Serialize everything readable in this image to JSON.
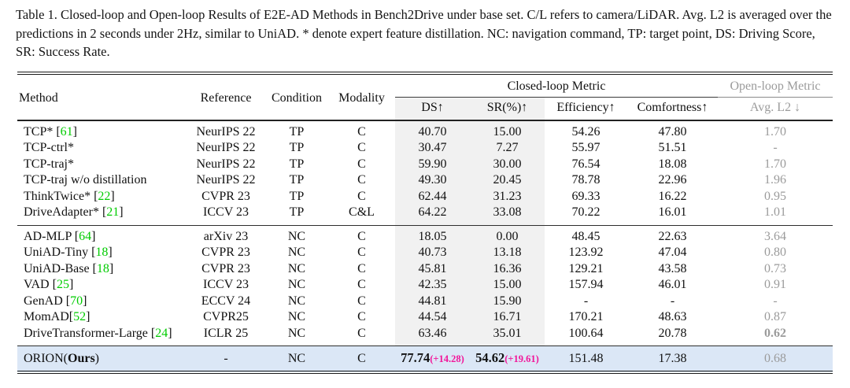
{
  "caption": "Table 1. Closed-loop and Open-loop Results of E2E-AD Methods in Bench2Drive under base set. C/L refers to camera/LiDAR. Avg. L2 is averaged over the predictions in 2 seconds under 2Hz, similar to UniAD. * denote expert feature distillation. NC: navigation command, TP: target point, DS: Driving Score, SR: Success Rate.",
  "colors": {
    "citation_green": "#00cc00",
    "delta_pink": "#f2169a",
    "highlight_row_blue": "#dbe7f6",
    "shaded_column_gray": "#f1f1f1",
    "openloop_text_gray": "#9b9b9b"
  },
  "table": {
    "columns": {
      "method": "Method",
      "reference": "Reference",
      "condition": "Condition",
      "modality": "Modality"
    },
    "group_headers": {
      "closed": "Closed-loop Metric",
      "open": "Open-loop Metric"
    },
    "sub_headers": {
      "ds": "DS↑",
      "sr": "SR(%)↑",
      "efficiency": "Efficiency↑",
      "comfortness": "Comfortness↑",
      "avg_l2": "Avg. L2 ↓"
    },
    "groups": [
      {
        "rows": [
          {
            "name": "TCP* ",
            "cite": "61",
            "ref": "NeurIPS 22",
            "cond": "TP",
            "mod": "C",
            "ds": "40.70",
            "sr": "15.00",
            "eff": "54.26",
            "comf": "47.80",
            "l2": "1.70",
            "l2_bold": false
          },
          {
            "name": "TCP-ctrl*",
            "cite": null,
            "ref": "NeurIPS 22",
            "cond": "TP",
            "mod": "C",
            "ds": "30.47",
            "sr": "7.27",
            "eff": "55.97",
            "comf": "51.51",
            "l2": "-",
            "l2_bold": false
          },
          {
            "name": "TCP-traj*",
            "cite": null,
            "ref": "NeurIPS 22",
            "cond": "TP",
            "mod": "C",
            "ds": "59.90",
            "sr": "30.00",
            "eff": "76.54",
            "comf": "18.08",
            "l2": "1.70",
            "l2_bold": false
          },
          {
            "name": "TCP-traj w/o distillation",
            "cite": null,
            "ref": "NeurIPS 22",
            "cond": "TP",
            "mod": "C",
            "ds": "49.30",
            "sr": "20.45",
            "eff": "78.78",
            "comf": "22.96",
            "l2": "1.96",
            "l2_bold": false
          },
          {
            "name": "ThinkTwice* ",
            "cite": "22",
            "ref": "CVPR 23",
            "cond": "TP",
            "mod": "C",
            "ds": "62.44",
            "sr": "31.23",
            "eff": "69.33",
            "comf": "16.22",
            "l2": "0.95",
            "l2_bold": false
          },
          {
            "name": "DriveAdapter* ",
            "cite": "21",
            "ref": "ICCV 23",
            "cond": "TP",
            "mod": "C&L",
            "ds": "64.22",
            "sr": "33.08",
            "eff": "70.22",
            "comf": "16.01",
            "l2": "1.01",
            "l2_bold": false
          }
        ]
      },
      {
        "rows": [
          {
            "name": "AD-MLP ",
            "cite": "64",
            "ref": "arXiv 23",
            "cond": "NC",
            "mod": "C",
            "ds": "18.05",
            "sr": "0.00",
            "eff": "48.45",
            "comf": "22.63",
            "l2": "3.64",
            "l2_bold": false
          },
          {
            "name": "UniAD-Tiny ",
            "cite": "18",
            "ref": "CVPR 23",
            "cond": "NC",
            "mod": "C",
            "ds": "40.73",
            "sr": "13.18",
            "eff": "123.92",
            "comf": "47.04",
            "l2": "0.80",
            "l2_bold": false
          },
          {
            "name": "UniAD-Base ",
            "cite": "18",
            "ref": "CVPR 23",
            "cond": "NC",
            "mod": "C",
            "ds": "45.81",
            "sr": "16.36",
            "eff": "129.21",
            "comf": "43.58",
            "l2": "0.73",
            "l2_bold": false
          },
          {
            "name": "VAD ",
            "cite": "25",
            "ref": "ICCV 23",
            "cond": "NC",
            "mod": "C",
            "ds": "42.35",
            "sr": "15.00",
            "eff": "157.94",
            "comf": "46.01",
            "l2": "0.91",
            "l2_bold": false
          },
          {
            "name": "GenAD ",
            "cite": "70",
            "ref": "ECCV 24",
            "cond": "NC",
            "mod": "C",
            "ds": "44.81",
            "sr": "15.90",
            "eff": "-",
            "comf": "-",
            "l2": "-",
            "l2_bold": false
          },
          {
            "name": "MomAD",
            "cite": "52",
            "ref": "CVPR25",
            "cond": "NC",
            "mod": "C",
            "ds": "44.54",
            "sr": "16.71",
            "eff": "170.21",
            "comf": "48.63",
            "l2": "0.87",
            "l2_bold": false
          },
          {
            "name": "DriveTransformer-Large ",
            "cite": "24",
            "ref": "ICLR 25",
            "cond": "NC",
            "mod": "C",
            "ds": "63.46",
            "sr": "35.01",
            "eff": "100.64",
            "comf": "20.78",
            "l2": "0.62",
            "l2_bold": true
          }
        ]
      }
    ],
    "highlight": {
      "name_pre": "ORION(",
      "name_bold": "Ours",
      "name_post": ")",
      "ref": "-",
      "cond": "NC",
      "mod": "C",
      "ds": {
        "v": "77.74",
        "delta": "(+14.28)"
      },
      "sr": {
        "v": "54.62",
        "delta": "(+19.61)"
      },
      "eff": "151.48",
      "comf": "17.38",
      "l2": "0.68"
    }
  }
}
